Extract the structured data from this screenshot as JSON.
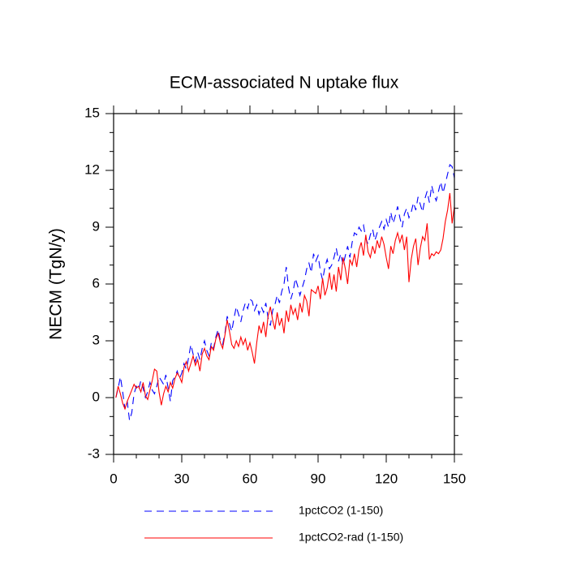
{
  "chart_data": {
    "type": "line",
    "title": "ECM-associated N uptake flux",
    "y_label": "NECM  (TgN/y)",
    "x": [
      1,
      2,
      3,
      4,
      5,
      6,
      7,
      8,
      9,
      10,
      11,
      12,
      13,
      14,
      15,
      16,
      17,
      18,
      19,
      20,
      21,
      22,
      23,
      24,
      25,
      26,
      27,
      28,
      29,
      30,
      31,
      32,
      33,
      34,
      35,
      36,
      37,
      38,
      39,
      40,
      41,
      42,
      43,
      44,
      45,
      46,
      47,
      48,
      49,
      50,
      51,
      52,
      53,
      54,
      55,
      56,
      57,
      58,
      59,
      60,
      61,
      62,
      63,
      64,
      65,
      66,
      67,
      68,
      69,
      70,
      71,
      72,
      73,
      74,
      75,
      76,
      77,
      78,
      79,
      80,
      81,
      82,
      83,
      84,
      85,
      86,
      87,
      88,
      89,
      90,
      91,
      92,
      93,
      94,
      95,
      96,
      97,
      98,
      99,
      100,
      101,
      102,
      103,
      104,
      105,
      106,
      107,
      108,
      109,
      110,
      111,
      112,
      113,
      114,
      115,
      116,
      117,
      118,
      119,
      120,
      121,
      122,
      123,
      124,
      125,
      126,
      127,
      128,
      129,
      130,
      131,
      132,
      133,
      134,
      135,
      136,
      137,
      138,
      139,
      140,
      141,
      142,
      143,
      144,
      145,
      146,
      147,
      148,
      149,
      150
    ],
    "series": [
      {
        "name": "1pctCO2 (1-150)",
        "color": "#0000ff",
        "line_style": "dashed",
        "values": [
          0.0,
          0.5,
          1.1,
          0.3,
          -0.6,
          -0.2,
          -1.2,
          -0.8,
          0.2,
          0.6,
          0.4,
          0.9,
          0.5,
          0.0,
          0.3,
          0.8,
          0.4,
          0.2,
          0.6,
          1.1,
          0.9,
          0.7,
          1.2,
          0.5,
          -0.2,
          0.9,
          1.1,
          1.4,
          1.0,
          1.3,
          1.8,
          1.5,
          2.1,
          2.8,
          2.3,
          1.9,
          2.4,
          2.0,
          2.6,
          3.0,
          2.5,
          2.2,
          2.9,
          2.6,
          3.2,
          3.6,
          3.0,
          2.8,
          3.4,
          4.3,
          3.9,
          3.5,
          4.2,
          4.8,
          4.4,
          4.0,
          4.6,
          5.0,
          4.7,
          5.2,
          5.1,
          4.6,
          4.9,
          4.4,
          4.8,
          4.5,
          5.0,
          4.2,
          3.8,
          4.6,
          4.9,
          5.4,
          5.0,
          5.6,
          6.0,
          6.9,
          5.8,
          5.2,
          5.6,
          6.3,
          5.9,
          5.4,
          5.8,
          6.2,
          6.8,
          7.1,
          6.6,
          7.6,
          7.2,
          7.5,
          6.7,
          6.2,
          6.9,
          7.3,
          6.8,
          7.0,
          7.4,
          7.9,
          7.2,
          7.6,
          7.0,
          7.5,
          8.0,
          7.4,
          8.2,
          8.7,
          8.6,
          9.0,
          8.8,
          9.1,
          8.4,
          8.1,
          8.6,
          8.9,
          8.3,
          8.7,
          9.0,
          9.3,
          8.9,
          9.4,
          9.0,
          9.8,
          9.2,
          9.6,
          10.1,
          9.5,
          9.0,
          9.7,
          10.0,
          9.5,
          9.8,
          10.3,
          9.9,
          10.6,
          10.2,
          9.8,
          10.5,
          10.9,
          10.3,
          11.2,
          10.7,
          10.4,
          10.9,
          11.4,
          10.8,
          11.3,
          11.8,
          12.3,
          12.2,
          11.6
        ]
      },
      {
        "name": "1pctCO2-rad (1-150)",
        "color": "#ff0000",
        "line_style": "solid",
        "values": [
          0.0,
          0.6,
          0.2,
          -0.3,
          -0.6,
          -0.2,
          0.1,
          0.4,
          0.7,
          0.5,
          0.6,
          0.3,
          0.8,
          0.1,
          -0.1,
          0.4,
          0.9,
          1.5,
          1.4,
          0.3,
          -0.4,
          0.2,
          0.6,
          0.3,
          0.8,
          0.5,
          1.0,
          1.3,
          1.1,
          0.8,
          1.6,
          1.9,
          1.4,
          1.8,
          2.2,
          1.7,
          2.0,
          1.4,
          2.3,
          2.6,
          2.2,
          2.0,
          2.7,
          2.5,
          3.1,
          3.4,
          2.9,
          2.6,
          3.3,
          4.1,
          3.5,
          2.8,
          2.6,
          3.0,
          2.7,
          3.2,
          2.8,
          3.1,
          2.5,
          2.9,
          2.4,
          1.8,
          2.9,
          3.8,
          3.4,
          4.0,
          3.2,
          4.3,
          4.8,
          4.1,
          3.6,
          4.5,
          3.8,
          4.2,
          3.4,
          4.6,
          4.0,
          4.9,
          4.4,
          4.7,
          4.1,
          5.0,
          4.5,
          5.4,
          5.1,
          4.3,
          5.7,
          5.6,
          5.5,
          5.9,
          5.2,
          6.3,
          5.4,
          5.8,
          6.6,
          5.7,
          6.5,
          5.6,
          6.9,
          6.2,
          7.4,
          6.8,
          6.0,
          7.3,
          7.0,
          7.6,
          6.9,
          7.8,
          8.2,
          7.5,
          8.6,
          7.7,
          7.4,
          8.0,
          7.6,
          8.3,
          7.9,
          8.5,
          8.1,
          7.4,
          6.8,
          8.0,
          7.6,
          8.3,
          8.7,
          8.2,
          8.6,
          7.8,
          8.5,
          6.1,
          7.3,
          8.0,
          8.4,
          7.0,
          7.9,
          8.5,
          8.3,
          9.2,
          7.3,
          7.6,
          7.5,
          7.7,
          7.6,
          7.8,
          8.4,
          9.3,
          9.9,
          10.8,
          9.2,
          10.1
        ]
      }
    ],
    "xlim": [
      0,
      150
    ],
    "ylim": [
      -3,
      15
    ],
    "xticks": [
      0,
      30,
      60,
      90,
      120,
      150
    ],
    "yticks": [
      -3,
      0,
      3,
      6,
      9,
      12,
      15
    ],
    "x_minor_ticks": [
      10,
      20,
      40,
      50,
      70,
      80,
      100,
      110,
      130,
      140
    ],
    "y_minor_ticks": [
      -2,
      -1,
      1,
      2,
      4,
      5,
      7,
      8,
      10,
      11,
      13,
      14
    ],
    "legend": "bottom",
    "grid": false
  }
}
